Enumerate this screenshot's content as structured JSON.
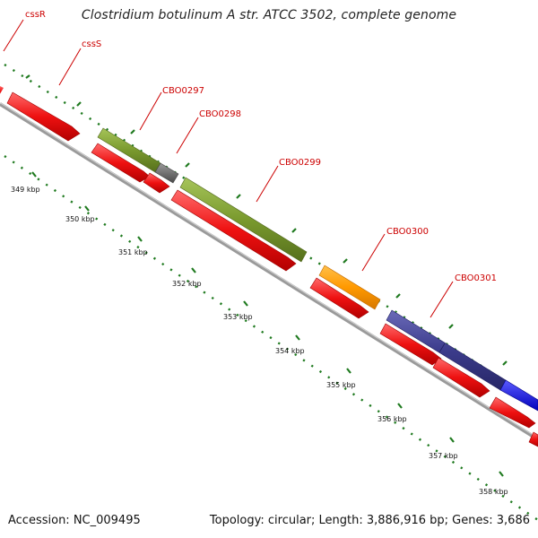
{
  "title": "Clostridium botulinum A str. ATCC 3502, complete genome",
  "footer": {
    "accession": "Accession: NC_009495",
    "summary": "Topology: circular; Length: 3,886,916 bp; Genes: 3,686"
  },
  "genes": [
    {
      "name": "cssR"
    },
    {
      "name": "cssS"
    },
    {
      "name": "CBO0297"
    },
    {
      "name": "CBO0298"
    },
    {
      "name": "CBO0299"
    },
    {
      "name": "CBO0300"
    },
    {
      "name": "CBO0301"
    }
  ],
  "ticks": [
    {
      "label": "349 kbp"
    },
    {
      "label": "350 kbp"
    },
    {
      "label": "351 kbp"
    },
    {
      "label": "352 kbp"
    },
    {
      "label": "353 kbp"
    },
    {
      "label": "354 kbp"
    },
    {
      "label": "355 kbp"
    },
    {
      "label": "356 kbp"
    },
    {
      "label": "357 kbp"
    },
    {
      "label": "358 kbp"
    }
  ],
  "colors": {
    "cds": "#ee1111",
    "olive": "#7a9a2e",
    "gray_gene": "#6a6a6a",
    "orange": "#ff9900",
    "navy": "#3c3c8c",
    "blue": "#1a1aee",
    "backbone": "#9a9a9a",
    "dots": "#1f7a1f",
    "label": "#cc0000"
  }
}
